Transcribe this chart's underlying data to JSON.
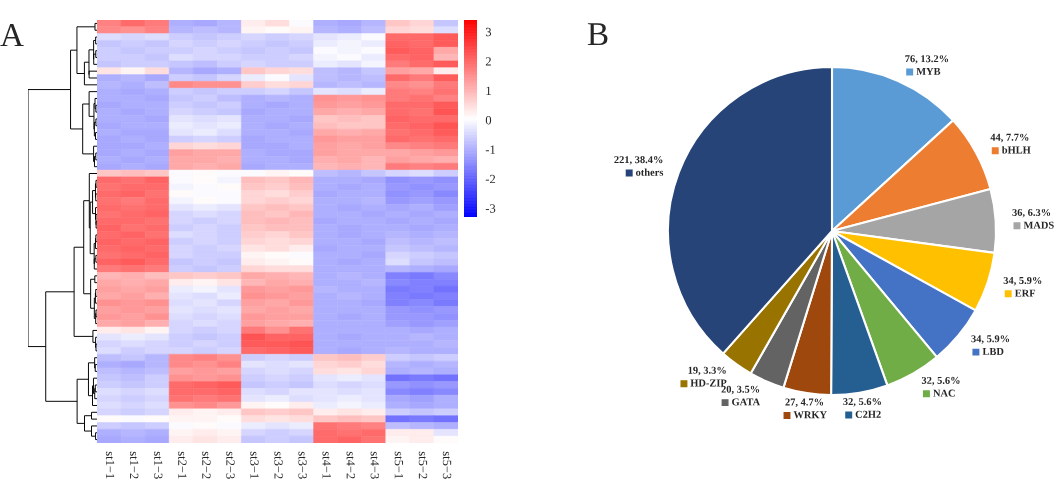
{
  "chart_data": [
    {
      "type": "heatmap",
      "annotations": [
        "A"
      ],
      "categories": [
        "st1−1",
        "st1−2",
        "st1−3",
        "st2−1",
        "st2−2",
        "st2−3",
        "st3−1",
        "st3−2",
        "st3−3",
        "st4−1",
        "st4−2",
        "st4−3",
        "st5−1",
        "st5−2",
        "st5−3"
      ],
      "y_categories": [
        null,
        null,
        null,
        null,
        null,
        null,
        null,
        null,
        null,
        null,
        null,
        null,
        null,
        null,
        null,
        null,
        null,
        null,
        null,
        null,
        null,
        null,
        null,
        null,
        null,
        null,
        null,
        null,
        null,
        null,
        null,
        null,
        null,
        null,
        null,
        null,
        null,
        null,
        null,
        null,
        null,
        null,
        null,
        null,
        null,
        null,
        null,
        null,
        null,
        null,
        null,
        null,
        null,
        null,
        null,
        null,
        null,
        null,
        null,
        null,
        null,
        null
      ],
      "clim": [
        -3.3,
        3.4
      ],
      "cticks": [
        -3,
        -2,
        -1,
        0,
        1,
        2,
        3
      ],
      "cells": [
        [
          1.7,
          2.0,
          1.8,
          -1.0,
          -1.1,
          -0.9,
          0.3,
          0.5,
          0.0,
          -1.0,
          -1.1,
          -0.9,
          0.8,
          0.6,
          -0.7
        ],
        [
          1.6,
          1.5,
          1.7,
          -0.9,
          -0.8,
          -0.9,
          0.2,
          0.1,
          0.2,
          -0.9,
          -1.0,
          -0.8,
          0.6,
          0.5,
          -0.4
        ],
        [
          -0.4,
          -0.5,
          -0.4,
          -0.6,
          -0.7,
          -0.6,
          -0.5,
          -0.6,
          -0.5,
          -0.3,
          -0.2,
          0.0,
          2.0,
          2.0,
          2.2
        ],
        [
          -0.7,
          -0.6,
          -0.7,
          -0.5,
          -0.6,
          -0.5,
          -0.6,
          -0.7,
          -0.6,
          -0.2,
          -0.1,
          -0.2,
          2.1,
          2.0,
          2.2
        ],
        [
          -0.6,
          -0.7,
          -0.6,
          -0.6,
          -0.5,
          -0.6,
          -0.7,
          -0.6,
          -0.7,
          0.0,
          -0.1,
          0.0,
          2.2,
          2.1,
          1.2
        ],
        [
          -0.6,
          -0.6,
          -0.7,
          -0.4,
          -0.5,
          -0.5,
          -0.6,
          -0.6,
          -0.5,
          -0.1,
          0.0,
          -0.2,
          2.0,
          2.1,
          1.0
        ],
        [
          -0.7,
          -0.6,
          -0.6,
          -0.7,
          -0.8,
          -0.6,
          -0.5,
          -0.6,
          -0.6,
          -0.2,
          -0.3,
          -0.1,
          1.8,
          2.0,
          2.2
        ],
        [
          0.4,
          0.2,
          0.5,
          -0.9,
          -1.1,
          -1.0,
          0.8,
          0.6,
          0.5,
          -0.8,
          -0.9,
          -0.7,
          1.3,
          1.2,
          0.3
        ],
        [
          -1.0,
          -0.9,
          -1.1,
          -0.6,
          -0.7,
          -0.5,
          -0.2,
          0.0,
          -0.3,
          -0.8,
          -0.9,
          -0.8,
          2.0,
          1.8,
          2.2
        ],
        [
          -0.9,
          -1.0,
          -0.8,
          1.6,
          1.5,
          1.5,
          0.7,
          0.5,
          0.6,
          -0.9,
          -0.8,
          -0.9,
          1.6,
          1.5,
          1.8
        ],
        [
          -1.0,
          -1.1,
          -1.0,
          -0.6,
          -0.7,
          -0.6,
          -0.6,
          -0.5,
          -0.7,
          -0.3,
          -0.4,
          -0.2,
          1.8,
          1.7,
          1.9
        ],
        [
          -1.0,
          -1.0,
          -1.1,
          -0.7,
          -0.6,
          -0.8,
          -1.0,
          -0.9,
          -1.0,
          1.5,
          1.4,
          1.5,
          1.8,
          1.9,
          1.7
        ],
        [
          -1.1,
          -1.0,
          -1.0,
          -0.6,
          -0.7,
          -0.6,
          -1.0,
          -1.1,
          -1.0,
          1.4,
          1.3,
          1.4,
          2.0,
          2.0,
          2.2
        ],
        [
          -1.0,
          -1.1,
          -1.0,
          -0.5,
          -0.6,
          -0.7,
          -1.1,
          -1.0,
          -1.0,
          1.2,
          1.1,
          1.2,
          2.0,
          1.9,
          2.3
        ],
        [
          -1.0,
          -1.0,
          -1.1,
          -0.3,
          -0.4,
          -0.3,
          -1.0,
          -1.0,
          -1.1,
          0.8,
          0.9,
          0.8,
          2.1,
          2.0,
          2.0
        ],
        [
          -1.1,
          -1.0,
          -1.0,
          -0.2,
          -0.3,
          -0.2,
          -1.0,
          -1.1,
          -1.0,
          0.9,
          0.8,
          0.8,
          2.0,
          2.1,
          2.3
        ],
        [
          -1.0,
          -1.1,
          -1.1,
          -0.3,
          -0.2,
          -0.4,
          -1.0,
          -1.0,
          -1.1,
          1.2,
          1.1,
          1.2,
          1.9,
          2.0,
          2.2
        ],
        [
          -1.1,
          -1.0,
          -1.1,
          -0.6,
          -0.5,
          -0.6,
          -1.1,
          -1.0,
          -1.0,
          1.4,
          1.3,
          1.3,
          2.0,
          1.9,
          2.0
        ],
        [
          -1.1,
          -1.1,
          -1.0,
          0.6,
          0.5,
          0.6,
          -1.1,
          -1.1,
          -1.0,
          1.3,
          1.2,
          1.3,
          1.6,
          1.7,
          1.8
        ],
        [
          -1.1,
          -1.0,
          -1.1,
          1.3,
          1.2,
          1.2,
          -1.0,
          -1.1,
          -1.1,
          1.3,
          1.2,
          1.2,
          1.2,
          1.3,
          1.4
        ],
        [
          -1.0,
          -1.1,
          -1.0,
          1.2,
          1.2,
          1.1,
          -1.0,
          -1.0,
          -1.1,
          1.1,
          1.2,
          1.0,
          1.3,
          1.2,
          1.1
        ],
        [
          -1.1,
          -1.0,
          -1.1,
          1.2,
          1.1,
          1.2,
          -1.1,
          -1.0,
          -1.0,
          1.0,
          1.1,
          1.0,
          1.8,
          1.7,
          1.8
        ],
        [
          0.8,
          0.9,
          0.8,
          0.0,
          0.1,
          0.0,
          0.0,
          0.2,
          0.1,
          -0.8,
          -0.9,
          -0.7,
          -0.5,
          -0.4,
          -0.6
        ],
        [
          2.0,
          1.9,
          2.1,
          0.0,
          0.1,
          -0.1,
          0.9,
          0.8,
          1.0,
          -1.0,
          -1.0,
          -1.1,
          -1.4,
          -1.3,
          -1.4
        ],
        [
          1.9,
          2.0,
          2.0,
          -0.1,
          0.0,
          0.1,
          0.8,
          0.7,
          0.9,
          -1.0,
          -1.1,
          -1.0,
          -1.3,
          -1.4,
          -1.3
        ],
        [
          2.0,
          2.1,
          1.9,
          0.1,
          0.0,
          0.0,
          0.6,
          0.5,
          0.7,
          -1.1,
          -1.0,
          -1.0,
          -1.4,
          -1.3,
          -1.5
        ],
        [
          1.9,
          1.8,
          2.0,
          -0.1,
          0.1,
          0.0,
          0.6,
          0.7,
          0.6,
          -1.0,
          -1.0,
          -0.9,
          -1.3,
          -1.2,
          -1.3
        ],
        [
          2.0,
          1.9,
          2.0,
          -0.3,
          -0.2,
          -0.3,
          0.8,
          0.9,
          0.8,
          -1.0,
          -1.1,
          -1.0,
          -1.1,
          -1.0,
          -1.2
        ],
        [
          1.9,
          2.0,
          2.1,
          -0.5,
          -0.4,
          -0.5,
          0.9,
          0.8,
          1.0,
          -1.0,
          -1.0,
          -1.1,
          -1.0,
          -1.1,
          -1.0
        ],
        [
          2.0,
          2.0,
          1.9,
          -0.5,
          -0.6,
          -0.5,
          0.9,
          1.0,
          0.9,
          -1.1,
          -1.0,
          -1.0,
          -1.1,
          -1.0,
          -1.1
        ],
        [
          2.1,
          1.9,
          2.0,
          -0.6,
          -0.5,
          -0.6,
          0.8,
          0.9,
          0.9,
          -1.0,
          -1.1,
          -1.0,
          -1.0,
          -1.1,
          -1.0
        ],
        [
          2.0,
          2.1,
          1.9,
          -0.4,
          -0.5,
          -0.6,
          0.7,
          0.6,
          0.8,
          -1.0,
          -1.1,
          -1.0,
          -0.9,
          -1.0,
          -0.9
        ],
        [
          2.1,
          2.0,
          2.1,
          -0.6,
          -0.5,
          -0.6,
          0.6,
          0.5,
          0.6,
          -1.0,
          -1.0,
          -1.1,
          -0.8,
          -0.9,
          -0.8
        ],
        [
          2.0,
          2.1,
          2.0,
          -0.5,
          -0.6,
          -0.5,
          0.4,
          0.5,
          0.3,
          -1.1,
          -1.0,
          -1.0,
          -0.7,
          -0.8,
          -0.9
        ],
        [
          1.9,
          2.0,
          2.1,
          -0.5,
          -0.6,
          -0.6,
          0.2,
          0.1,
          0.0,
          -1.0,
          -1.0,
          -1.1,
          -0.5,
          -0.6,
          -0.7
        ],
        [
          2.1,
          2.2,
          2.0,
          -0.7,
          -0.6,
          -0.7,
          0.3,
          0.2,
          0.1,
          -1.0,
          -1.1,
          -1.0,
          -0.4,
          -0.7,
          -0.8
        ],
        [
          1.8,
          1.9,
          1.8,
          -0.6,
          -0.7,
          -0.6,
          0.6,
          0.5,
          0.5,
          -1.0,
          -1.0,
          -1.0,
          -0.9,
          -1.0,
          -1.1
        ],
        [
          1.0,
          1.1,
          0.9,
          0.8,
          0.7,
          0.8,
          1.2,
          1.1,
          1.0,
          -1.0,
          -0.9,
          -1.0,
          -1.6,
          -1.7,
          -1.5
        ],
        [
          1.2,
          1.1,
          1.2,
          0.3,
          0.2,
          0.4,
          1.0,
          1.2,
          1.1,
          -1.0,
          -1.0,
          -0.9,
          -1.5,
          -1.6,
          -1.6
        ],
        [
          1.3,
          1.2,
          1.3,
          -0.2,
          -0.1,
          -0.3,
          1.4,
          1.3,
          1.4,
          -0.9,
          -1.0,
          -1.0,
          -1.7,
          -1.6,
          -1.8
        ],
        [
          1.2,
          1.3,
          1.1,
          -0.3,
          -0.4,
          -0.2,
          1.5,
          1.4,
          1.3,
          -1.0,
          -0.9,
          -1.0,
          -1.6,
          -1.7,
          -1.6
        ],
        [
          1.5,
          1.4,
          1.5,
          -0.4,
          -0.3,
          -0.5,
          1.3,
          1.2,
          1.4,
          -1.0,
          -1.0,
          -1.1,
          -1.6,
          -1.5,
          -1.7
        ],
        [
          1.3,
          1.4,
          1.3,
          -0.3,
          -0.4,
          -0.3,
          1.2,
          1.3,
          1.2,
          -1.0,
          -1.0,
          -1.0,
          -1.3,
          -1.4,
          -1.3
        ],
        [
          1.4,
          1.3,
          1.5,
          -0.4,
          -0.5,
          -0.4,
          1.4,
          1.3,
          1.3,
          -1.0,
          -1.1,
          -1.0,
          -1.3,
          -1.3,
          -1.4
        ],
        [
          1.2,
          1.3,
          1.1,
          -0.5,
          -0.4,
          -0.5,
          1.3,
          1.2,
          1.1,
          -1.0,
          -1.0,
          -1.0,
          -1.2,
          -1.3,
          -1.2
        ],
        [
          0.3,
          0.4,
          0.2,
          -0.5,
          -0.6,
          -0.5,
          1.8,
          1.5,
          1.9,
          -1.0,
          -1.0,
          -1.0,
          -1.0,
          -1.1,
          -1.0
        ],
        [
          -0.3,
          -0.2,
          -0.3,
          -0.6,
          -0.7,
          -0.6,
          2.3,
          2.1,
          2.1,
          -1.0,
          -1.1,
          -1.0,
          -1.0,
          -0.9,
          -1.0
        ],
        [
          -0.5,
          -0.4,
          -0.5,
          -0.6,
          -0.5,
          -0.6,
          2.2,
          2.2,
          2.3,
          -1.0,
          -1.0,
          -1.0,
          -1.0,
          -1.0,
          -0.9
        ],
        [
          -0.4,
          -0.6,
          -0.5,
          -0.5,
          -0.6,
          -0.5,
          2.0,
          2.1,
          2.2,
          -1.0,
          -1.1,
          -1.0,
          -0.9,
          -1.0,
          -1.0
        ],
        [
          -0.8,
          -0.7,
          -0.9,
          1.6,
          1.7,
          1.5,
          -0.6,
          -0.5,
          -0.6,
          0.8,
          0.9,
          0.7,
          -0.6,
          -0.7,
          -0.6
        ],
        [
          -1.0,
          -1.1,
          -0.9,
          1.6,
          1.5,
          1.7,
          -0.3,
          -0.4,
          -0.3,
          0.6,
          0.7,
          0.5,
          -0.9,
          -1.0,
          -0.9
        ],
        [
          -0.8,
          -0.9,
          -0.8,
          1.3,
          1.4,
          1.3,
          -0.5,
          -0.4,
          -0.5,
          0.5,
          0.4,
          0.6,
          -1.0,
          -0.9,
          -1.0
        ],
        [
          -0.7,
          -0.8,
          -0.6,
          1.5,
          1.4,
          1.5,
          -0.6,
          -0.5,
          -0.6,
          -0.3,
          -0.2,
          -0.3,
          -1.8,
          -1.7,
          -1.8
        ],
        [
          -0.6,
          -0.7,
          -0.6,
          2.0,
          2.1,
          2.2,
          -0.7,
          -0.6,
          -0.7,
          -0.4,
          -0.5,
          -0.4,
          -1.3,
          -1.4,
          -1.3
        ],
        [
          -0.4,
          -0.5,
          -0.4,
          2.0,
          2.0,
          2.1,
          -0.4,
          -0.5,
          -0.3,
          -0.3,
          -0.4,
          -0.3,
          -1.5,
          -1.6,
          -1.5
        ],
        [
          -0.5,
          -0.6,
          -0.5,
          1.9,
          1.8,
          1.9,
          -0.3,
          -0.2,
          -0.4,
          -0.3,
          -0.2,
          -0.3,
          -1.1,
          -1.2,
          -1.0
        ],
        [
          -0.4,
          -0.5,
          -0.4,
          1.5,
          1.6,
          1.4,
          0.2,
          0.1,
          0.3,
          -0.2,
          -0.1,
          -0.2,
          -1.0,
          -1.1,
          -1.0
        ],
        [
          -0.5,
          -0.6,
          -0.5,
          0.3,
          0.2,
          0.3,
          0.8,
          0.7,
          0.8,
          0.3,
          0.4,
          0.3,
          -0.6,
          -0.7,
          -0.6
        ],
        [
          0.1,
          0.0,
          0.1,
          0.2,
          0.2,
          0.1,
          0.5,
          0.4,
          0.5,
          0.8,
          0.9,
          0.8,
          -1.8,
          -1.7,
          -1.8
        ],
        [
          -0.6,
          -0.7,
          -0.6,
          0.0,
          0.1,
          0.0,
          -0.2,
          -0.3,
          -0.2,
          1.9,
          1.8,
          1.7,
          -0.8,
          -0.9,
          -1.0
        ],
        [
          -1.0,
          -0.9,
          -1.0,
          0.2,
          0.3,
          0.2,
          -0.5,
          -0.6,
          -0.5,
          2.0,
          1.9,
          2.0,
          0.3,
          0.3,
          -0.3
        ],
        [
          -1.1,
          -1.0,
          -1.1,
          0.3,
          0.4,
          0.3,
          -0.7,
          -0.6,
          -0.7,
          2.0,
          2.1,
          1.9,
          0.2,
          0.3,
          0.1
        ]
      ]
    },
    {
      "type": "pie",
      "annotations": [
        "B"
      ],
      "legend": "right",
      "categories": [
        "MYB",
        "bHLH",
        "MADS",
        "ERF",
        "LBD",
        "NAC",
        "C2H2",
        "WRKY",
        "GATA",
        "HD-ZIP",
        "others"
      ],
      "values": [
        76,
        44,
        36,
        34,
        34,
        32,
        32,
        27,
        20,
        19,
        221
      ],
      "value_labels": [
        "76, 13.2%",
        "44, 7.7%",
        "36, 6.3%",
        "34, 5.9%",
        "34, 5.9%",
        "32, 5.6%",
        "32, 5.6%",
        "27, 4.7%",
        "20, 3.5%",
        "19, 3.3%",
        "221, 38.4%"
      ],
      "colors": [
        "#5b9bd5",
        "#ed7d31",
        "#a5a5a5",
        "#ffc000",
        "#4472c4",
        "#70ad47",
        "#255e91",
        "#9e480e",
        "#636363",
        "#997300",
        "#264478"
      ]
    }
  ]
}
